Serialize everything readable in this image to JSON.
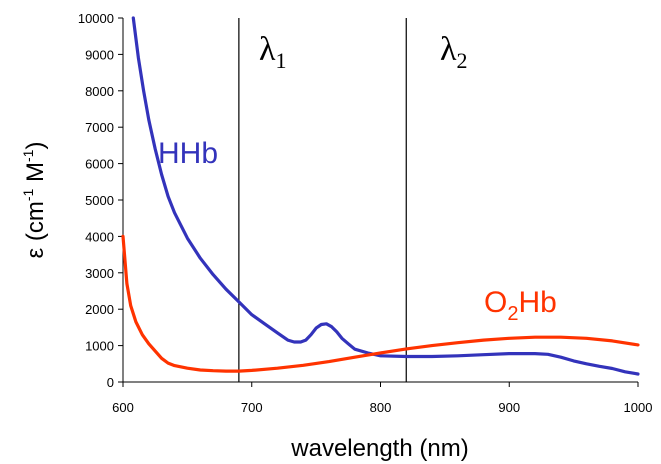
{
  "chart_data": {
    "type": "line",
    "title": "",
    "xlabel": "wavelength (nm)",
    "ylabel_main": "ε (cm",
    "ylabel_sup1": "-1",
    "ylabel_mid": " M",
    "ylabel_sup2": "-1",
    "ylabel_end": ")",
    "xlim": [
      600,
      1000
    ],
    "ylim": [
      0,
      10000
    ],
    "xticks": [
      "600",
      "700",
      "800",
      "900",
      "1000"
    ],
    "yticks": [
      "0",
      "1000",
      "2000",
      "3000",
      "4000",
      "5000",
      "6000",
      "7000",
      "8000",
      "9000",
      "10000"
    ],
    "grid": false,
    "legend": "none",
    "series": [
      {
        "name": "HHb",
        "color": "#3333bb",
        "x": [
          608,
          612,
          616,
          620,
          625,
          630,
          635,
          640,
          650,
          660,
          670,
          680,
          690,
          700,
          710,
          720,
          728,
          733,
          738,
          742,
          746,
          750,
          754,
          758,
          762,
          766,
          770,
          775,
          780,
          790,
          800,
          820,
          840,
          860,
          880,
          900,
          920,
          930,
          940,
          950,
          960,
          970,
          980,
          990,
          1000
        ],
        "values": [
          10000,
          8900,
          8000,
          7200,
          6400,
          5700,
          5100,
          4650,
          3950,
          3400,
          2950,
          2550,
          2200,
          1850,
          1600,
          1350,
          1150,
          1100,
          1100,
          1150,
          1300,
          1480,
          1580,
          1600,
          1520,
          1380,
          1200,
          1050,
          900,
          800,
          720,
          700,
          700,
          720,
          750,
          780,
          780,
          760,
          680,
          580,
          500,
          430,
          370,
          280,
          220
        ]
      },
      {
        "name": "O2Hb",
        "color": "#ff3300",
        "x": [
          600,
          603,
          606,
          610,
          615,
          620,
          625,
          630,
          635,
          640,
          650,
          660,
          670,
          680,
          690,
          700,
          720,
          740,
          760,
          780,
          800,
          820,
          840,
          860,
          880,
          900,
          920,
          940,
          960,
          980,
          1000
        ],
        "values": [
          4000,
          2700,
          2100,
          1650,
          1300,
          1050,
          850,
          650,
          520,
          450,
          380,
          330,
          310,
          300,
          300,
          320,
          380,
          460,
          560,
          680,
          800,
          910,
          1000,
          1080,
          1150,
          1200,
          1230,
          1230,
          1200,
          1130,
          1020
        ]
      }
    ],
    "annotations": {
      "lines_x": [
        690,
        820
      ],
      "lambda1_main": "λ",
      "lambda1_sub": "1",
      "lambda2_main": "λ",
      "lambda2_sub": "2",
      "hhb_label": "HHb",
      "o2hb_main": "O",
      "o2hb_sub": "2",
      "o2hb_end": "Hb"
    }
  }
}
